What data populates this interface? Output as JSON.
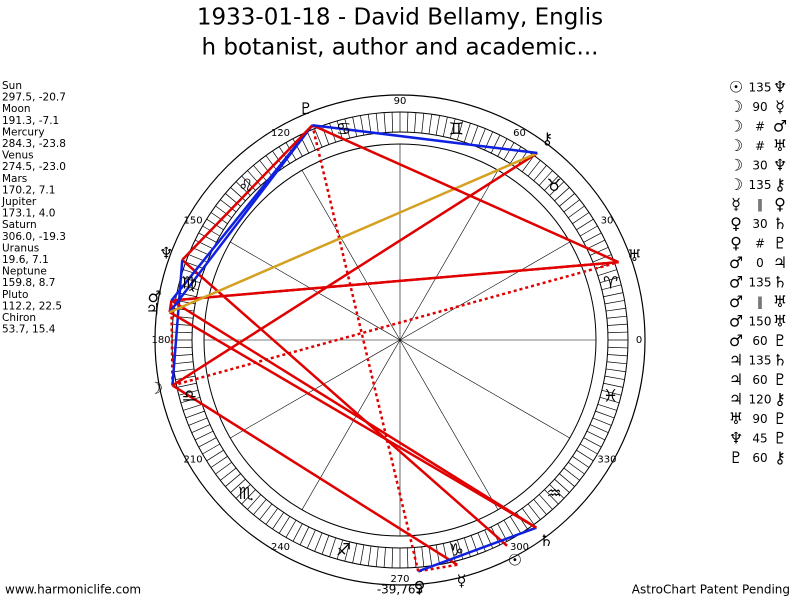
{
  "title_lines": [
    "1933-01-18 - David Bellamy, Englis",
    "h botanist, author and academic..."
  ],
  "planets": [
    {
      "name": "Sun",
      "glyph": "☉",
      "coords": "297.5, -20.7"
    },
    {
      "name": "Moon",
      "glyph": "☽",
      "coords": "191.3, -7.1"
    },
    {
      "name": "Mercury",
      "glyph": "☿",
      "coords": "284.3, -23.8"
    },
    {
      "name": "Venus",
      "glyph": "♀",
      "coords": "274.5, -23.0"
    },
    {
      "name": "Mars",
      "glyph": "♂",
      "coords": "170.2, 7.1"
    },
    {
      "name": "Jupiter",
      "glyph": "♃",
      "coords": "173.1, 4.0"
    },
    {
      "name": "Saturn",
      "glyph": "♄",
      "coords": "306.0, -19.3"
    },
    {
      "name": "Uranus",
      "glyph": "♅",
      "coords": "19.6, 7.1"
    },
    {
      "name": "Neptune",
      "glyph": "♆",
      "coords": "159.8, 8.7"
    },
    {
      "name": "Pluto",
      "glyph": "♇",
      "coords": "112.2, 22.5"
    },
    {
      "name": "Chiron",
      "glyph": "⚷",
      "coords": "53.7, 15.4"
    }
  ],
  "aspects": [
    {
      "from": "☉",
      "aspect": "135",
      "to": "♆"
    },
    {
      "from": "☽",
      "aspect": "90",
      "to": "☿"
    },
    {
      "from": "☽",
      "aspect": "#",
      "to": "♂"
    },
    {
      "from": "☽",
      "aspect": "#",
      "to": "♅"
    },
    {
      "from": "☽",
      "aspect": "30",
      "to": "♆"
    },
    {
      "from": "☽",
      "aspect": "135",
      "to": "⚷"
    },
    {
      "from": "☿",
      "aspect": "‖",
      "to": "♀"
    },
    {
      "from": "♀",
      "aspect": "30",
      "to": "♄"
    },
    {
      "from": "♀",
      "aspect": "#",
      "to": "♇"
    },
    {
      "from": "♂",
      "aspect": "0",
      "to": "♃"
    },
    {
      "from": "♂",
      "aspect": "135",
      "to": "♄"
    },
    {
      "from": "♂",
      "aspect": "‖",
      "to": "♅"
    },
    {
      "from": "♂",
      "aspect": "150",
      "to": "♅"
    },
    {
      "from": "♂",
      "aspect": "60",
      "to": "♇"
    },
    {
      "from": "♃",
      "aspect": "135",
      "to": "♄"
    },
    {
      "from": "♃",
      "aspect": "60",
      "to": "♇"
    },
    {
      "from": "♃",
      "aspect": "120",
      "to": "⚷"
    },
    {
      "from": "♅",
      "aspect": "90",
      "to": "♇"
    },
    {
      "from": "♆",
      "aspect": "45",
      "to": "♇"
    },
    {
      "from": "♇",
      "aspect": "60",
      "to": "⚷"
    }
  ],
  "degrees": [
    0,
    30,
    60,
    90,
    120,
    150,
    180,
    210,
    240,
    270,
    300,
    330
  ],
  "zodiac": [
    "♈",
    "♉",
    "♊",
    "♋",
    "♌",
    "♍",
    "♎",
    "♏",
    "♐",
    "♑",
    "♒",
    "♓"
  ],
  "footer": {
    "left": "www.harmoniclife.com",
    "center": "-39,763",
    "right": "AstroChart Patent Pending"
  }
}
